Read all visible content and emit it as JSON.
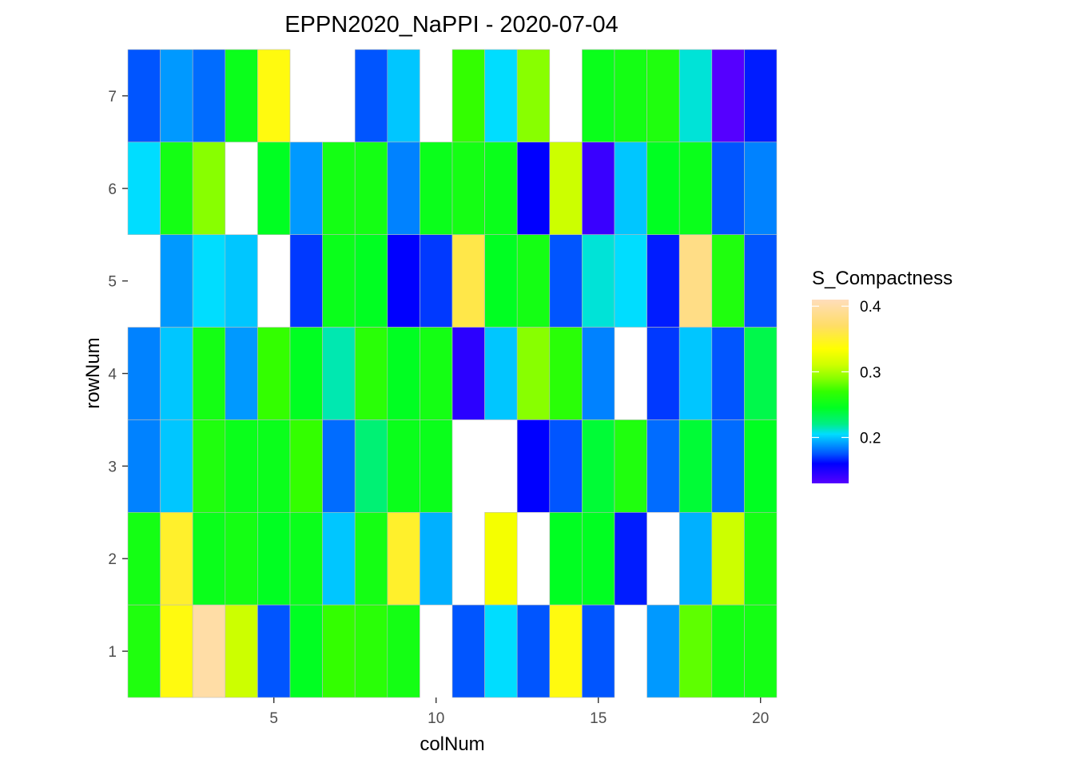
{
  "chart_data": {
    "type": "heatmap",
    "title": "EPPN2020_NaPPI - 2020-07-04",
    "xlabel": "colNum",
    "ylabel": "rowNum",
    "xlim": [
      0.5,
      20.5
    ],
    "ylim": [
      0.5,
      7.5
    ],
    "x_ticks": [
      5,
      10,
      15,
      20
    ],
    "y_ticks": [
      1,
      2,
      3,
      4,
      5,
      6,
      7
    ],
    "grid": false,
    "legend": {
      "title": "S_Compactness",
      "placement": "right",
      "range": [
        0.13,
        0.41
      ],
      "ticks": [
        0.2,
        0.3,
        0.4
      ],
      "gradient": [
        {
          "value": 0.13,
          "color": "#5500ff"
        },
        {
          "value": 0.16,
          "color": "#0000ff"
        },
        {
          "value": 0.175,
          "color": "#0055ff"
        },
        {
          "value": 0.19,
          "color": "#0099ff"
        },
        {
          "value": 0.205,
          "color": "#00ddff"
        },
        {
          "value": 0.22,
          "color": "#00ee88"
        },
        {
          "value": 0.245,
          "color": "#00ff22"
        },
        {
          "value": 0.27,
          "color": "#33ff00"
        },
        {
          "value": 0.29,
          "color": "#88ff00"
        },
        {
          "value": 0.31,
          "color": "#ccff00"
        },
        {
          "value": 0.335,
          "color": "#ffff00"
        },
        {
          "value": 0.37,
          "color": "#ffdd66"
        },
        {
          "value": 0.41,
          "color": "#ffddbb"
        }
      ]
    },
    "rows": [
      {
        "row": 7,
        "values": [
          0.175,
          0.19,
          0.18,
          0.25,
          0.34,
          null,
          null,
          0.175,
          0.2,
          null,
          0.27,
          0.205,
          0.29,
          null,
          0.25,
          0.255,
          0.26,
          0.21,
          0.13,
          0.165
        ]
      },
      {
        "row": 6,
        "values": [
          0.205,
          0.255,
          0.29,
          null,
          0.245,
          0.19,
          0.255,
          0.255,
          0.185,
          0.25,
          0.255,
          0.25,
          0.16,
          0.31,
          0.14,
          0.2,
          0.245,
          0.25,
          0.175,
          0.185
        ]
      },
      {
        "row": 5,
        "values": [
          null,
          0.19,
          0.205,
          0.2,
          null,
          0.17,
          0.25,
          0.245,
          0.16,
          0.17,
          0.36,
          0.245,
          0.255,
          0.175,
          0.21,
          0.205,
          0.165,
          0.385,
          0.26,
          0.175
        ]
      },
      {
        "row": 4,
        "values": [
          0.185,
          0.2,
          0.255,
          0.19,
          0.27,
          0.245,
          0.215,
          0.265,
          0.245,
          0.255,
          0.145,
          0.2,
          0.29,
          0.265,
          0.185,
          null,
          0.17,
          0.2,
          0.175,
          0.235
        ]
      },
      {
        "row": 3,
        "values": [
          0.185,
          0.2,
          0.26,
          0.25,
          0.25,
          0.27,
          0.18,
          0.225,
          0.25,
          0.25,
          null,
          null,
          0.16,
          0.175,
          0.24,
          0.26,
          0.18,
          0.24,
          0.18,
          0.245
        ]
      },
      {
        "row": 2,
        "values": [
          0.255,
          0.35,
          0.25,
          0.255,
          0.245,
          0.25,
          0.2,
          0.255,
          0.35,
          0.195,
          null,
          0.33,
          null,
          0.245,
          0.245,
          0.165,
          null,
          0.195,
          0.31,
          0.255
        ]
      },
      {
        "row": 1,
        "values": [
          0.26,
          0.34,
          0.4,
          0.31,
          0.175,
          0.245,
          0.27,
          0.265,
          0.255,
          null,
          0.175,
          0.205,
          0.175,
          0.34,
          0.175,
          null,
          0.19,
          0.28,
          0.255,
          0.255
        ]
      }
    ]
  }
}
